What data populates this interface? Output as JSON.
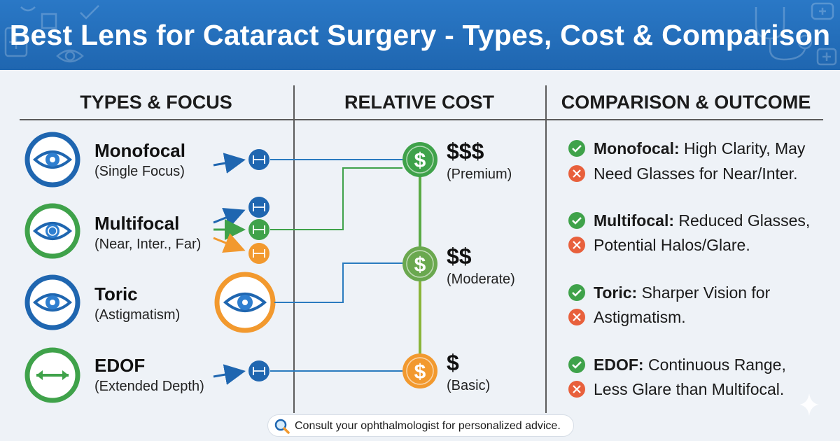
{
  "title": "Best Lens for Cataract Surgery - Types, Cost & Comparison",
  "columns": {
    "types": "TYPES & FOCUS",
    "cost": "RELATIVE COST",
    "comparison": "COMPARISON & OUTCOME"
  },
  "lenses": [
    {
      "name": "Monofocal",
      "subtitle": "(Single Focus)",
      "icon": "eye-icon",
      "color": "#1f66b0"
    },
    {
      "name": "Multifocal",
      "subtitle": "(Near, Inter., Far)",
      "icon": "eye-icon",
      "color": "#3fa24a"
    },
    {
      "name": "Toric",
      "subtitle": "(Astigmatism)",
      "icon": "eye-icon",
      "color": "#1f66b0"
    },
    {
      "name": "EDOF",
      "subtitle": "(Extended Depth)",
      "icon": "double-arrow-icon",
      "color": "#3fa24a"
    }
  ],
  "costs": [
    {
      "symbol": "$$$",
      "label": "(Premium)",
      "color": "#3fa24a"
    },
    {
      "symbol": "$$",
      "label": "(Moderate)",
      "color": "#6aa84f"
    },
    {
      "symbol": "$",
      "label": "(Basic)",
      "color": "#f2992e"
    }
  ],
  "comparison": [
    {
      "name": "Monofocal:",
      "pro": "High Clarity, May",
      "con": "Need Glasses for Near/Inter."
    },
    {
      "name": "Multifocal:",
      "pro": "Reduced Glasses,",
      "con": "Potential Halos/Glare."
    },
    {
      "name": "Toric:",
      "pro": "Sharper Vision for",
      "con": "Astigmatism."
    },
    {
      "name": "EDOF:",
      "pro": "Continuous Range,",
      "con": "Less Glare than Multifocal."
    }
  ],
  "footer": "Consult your ophthalmologist for personalized advice.",
  "colors": {
    "blue": "#1f66b0",
    "green": "#3fa24a",
    "orange": "#f2992e",
    "check": "#3fa24a",
    "cross": "#e8603c"
  }
}
